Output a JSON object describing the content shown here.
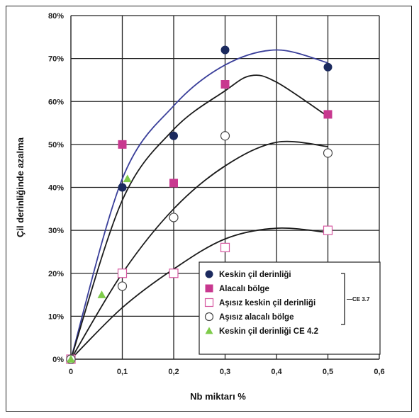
{
  "chart_data": {
    "type": "scatter",
    "xlabel": "Nb miktarı %",
    "ylabel": "Çil derinliğinde azalma",
    "x_ticks": [
      "0",
      "0,1",
      "0,2",
      "0,3",
      "0,4",
      "0,5",
      "0,6"
    ],
    "y_ticks": [
      "0%",
      "10%",
      "20%",
      "30%",
      "40%",
      "50%",
      "60%",
      "70%",
      "80%"
    ],
    "xlim": [
      0,
      0.6
    ],
    "ylim": [
      0,
      80
    ],
    "grid": true,
    "legend_position": "bottom-right",
    "bracket_label": "CE 3.7",
    "series": [
      {
        "name": "Keskin çil derinliği",
        "marker": "circle-filled",
        "color": "#1b2a5e",
        "points": [
          [
            0,
            0
          ],
          [
            0.1,
            40
          ],
          [
            0.2,
            52
          ],
          [
            0.3,
            72
          ],
          [
            0.5,
            68
          ]
        ]
      },
      {
        "name": "Alacalı bölge",
        "marker": "square-filled",
        "color": "#c8388f",
        "points": [
          [
            0,
            0
          ],
          [
            0.1,
            50
          ],
          [
            0.2,
            41
          ],
          [
            0.3,
            64
          ],
          [
            0.5,
            57
          ]
        ]
      },
      {
        "name": "Aşısız keskin çil derinliği",
        "marker": "square-open",
        "color": "#d6569f",
        "points": [
          [
            0,
            0
          ],
          [
            0.1,
            20
          ],
          [
            0.2,
            20
          ],
          [
            0.3,
            26
          ],
          [
            0.5,
            30
          ]
        ]
      },
      {
        "name": "Aşısız alacalı bölge",
        "marker": "circle-open",
        "color": "#444444",
        "points": [
          [
            0,
            0
          ],
          [
            0.1,
            17
          ],
          [
            0.2,
            33
          ],
          [
            0.3,
            52
          ],
          [
            0.5,
            48
          ]
        ]
      },
      {
        "name": "Keskin çil derinliği CE 4.2",
        "marker": "triangle-filled",
        "color": "#7ecb4a",
        "points": [
          [
            0,
            0
          ],
          [
            0.06,
            15
          ],
          [
            0.11,
            42
          ]
        ]
      }
    ],
    "trendlines": [
      {
        "color": "#3a3f9a",
        "x": [
          0,
          0.1,
          0.2,
          0.3,
          0.4,
          0.5
        ],
        "y": [
          0,
          42,
          59,
          68.5,
          72,
          69
        ]
      },
      {
        "color": "#1a1a1a",
        "x": [
          0,
          0.1,
          0.2,
          0.3,
          0.35,
          0.4,
          0.5
        ],
        "y": [
          0,
          37,
          53.5,
          62.5,
          66,
          64.5,
          56.5
        ]
      },
      {
        "color": "#1a1a1a",
        "x": [
          0,
          0.1,
          0.2,
          0.3,
          0.4,
          0.5
        ],
        "y": [
          0,
          20,
          35,
          45,
          50.5,
          49.5
        ]
      },
      {
        "color": "#1a1a1a",
        "x": [
          0,
          0.1,
          0.2,
          0.3,
          0.4,
          0.5
        ],
        "y": [
          0,
          12,
          21,
          28,
          30.5,
          29.5
        ]
      }
    ]
  }
}
